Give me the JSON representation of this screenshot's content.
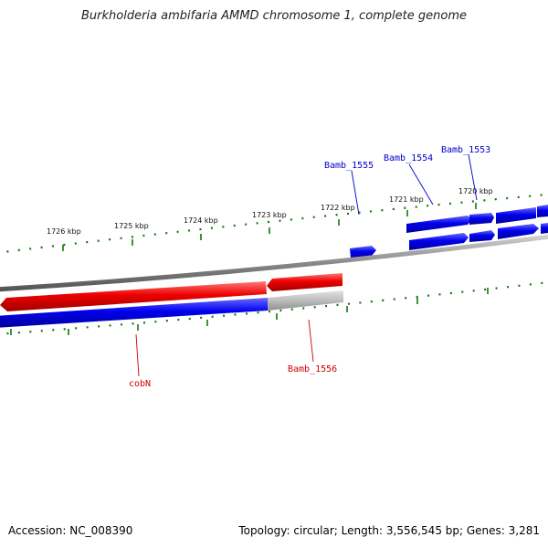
{
  "title": "Burkholderia ambifaria AMMD chromosome 1, complete genome",
  "footer": {
    "accession": "Accession: NC_008390",
    "summary": "Topology: circular; Length: 3,556,545 bp; Genes: 3,281"
  },
  "colors": {
    "backbone": "#808080",
    "forward_gene": "#0000ee",
    "reverse_gene": "#ee0000",
    "cds_reverse": "#0000ee",
    "pseudo_gene": "#b4b4b4",
    "tick": "#117711",
    "label_forward": "#0000cc",
    "label_reverse": "#cc0000"
  },
  "kbp_ticks": [
    {
      "label": "1720 kbp"
    },
    {
      "label": "1721 kbp"
    },
    {
      "label": "1722 kbp"
    },
    {
      "label": "1723 kbp"
    },
    {
      "label": "1724 kbp"
    },
    {
      "label": "1725 kbp"
    },
    {
      "label": "1726 kbp"
    }
  ],
  "gene_labels": [
    {
      "label": "Bamb_1553",
      "strand": "forward"
    },
    {
      "label": "Bamb_1554",
      "strand": "forward"
    },
    {
      "label": "Bamb_1555",
      "strand": "forward"
    },
    {
      "label": "Bamb_1556",
      "strand": "reverse"
    },
    {
      "label": "cobN",
      "strand": "reverse"
    }
  ]
}
